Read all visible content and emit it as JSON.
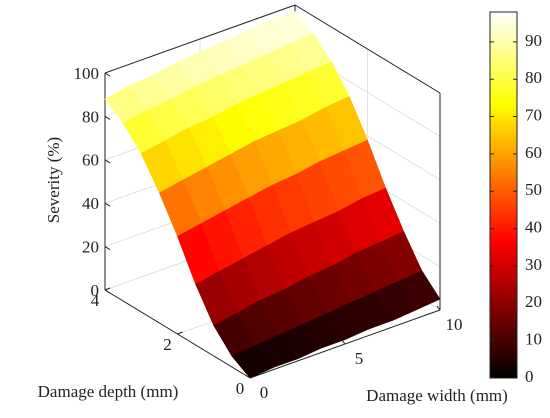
{
  "chart_data": {
    "type": "surface",
    "xlabel": "Damage depth (mm)",
    "ylabel": "Damage width (mm)",
    "zlabel": "Severity (%)",
    "x": [
      0,
      0.5,
      1,
      1.5,
      2,
      2.5,
      3,
      3.5,
      4
    ],
    "y": [
      0,
      1.25,
      2.5,
      3.75,
      5,
      6.25,
      7.5,
      8.75,
      10
    ],
    "z": [
      [
        0,
        1,
        1,
        2,
        2,
        3,
        3,
        4,
        5
      ],
      [
        5,
        6,
        7,
        8,
        9,
        10,
        11,
        12,
        13
      ],
      [
        14,
        16,
        18,
        19,
        21,
        22,
        24,
        25,
        26
      ],
      [
        28,
        30,
        32,
        34,
        36,
        37,
        38,
        40,
        41
      ],
      [
        45,
        47,
        49,
        51,
        53,
        54,
        56,
        57,
        58
      ],
      [
        60,
        62,
        64,
        66,
        68,
        69,
        70,
        72,
        73
      ],
      [
        73,
        75,
        77,
        78,
        80,
        81,
        82,
        83,
        84
      ],
      [
        82,
        84,
        85,
        87,
        88,
        89,
        90,
        91,
        92
      ],
      [
        88,
        90,
        91,
        93,
        94,
        95,
        96,
        97,
        97
      ]
    ],
    "xlim": [
      0,
      4
    ],
    "xticks": [
      0,
      2,
      4
    ],
    "ylim": [
      0,
      10
    ],
    "yticks": [
      0,
      5,
      10
    ],
    "zlim": [
      0,
      100
    ],
    "zticks": [
      0,
      20,
      40,
      60,
      80,
      100
    ],
    "colormap": "hot",
    "clim": [
      0,
      98
    ],
    "cticks": [
      0,
      10,
      20,
      30,
      40,
      50,
      60,
      70,
      80,
      90
    ],
    "grid": true
  }
}
